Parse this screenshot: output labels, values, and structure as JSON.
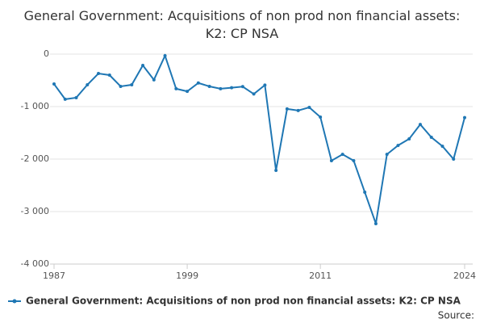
{
  "chart_data": {
    "type": "line",
    "title": "General Government: Acquisitions of non prod non financial assets: K2: CP NSA",
    "source": "Source:",
    "x": [
      1987,
      1988,
      1989,
      1990,
      1991,
      1992,
      1993,
      1994,
      1995,
      1996,
      1997,
      1998,
      1999,
      2000,
      2001,
      2002,
      2003,
      2004,
      2005,
      2006,
      2007,
      2008,
      2009,
      2010,
      2011,
      2012,
      2013,
      2014,
      2015,
      2016,
      2017,
      2018,
      2019,
      2020,
      2021,
      2022,
      2023,
      2024
    ],
    "series": [
      {
        "name": "General Government: Acquisitions of non prod non financial assets: K2: CP NSA",
        "color": "#1f77b4",
        "values": [
          -570,
          -860,
          -830,
          -585,
          -370,
          -400,
          -615,
          -585,
          -215,
          -490,
          -30,
          -660,
          -710,
          -550,
          -615,
          -660,
          -640,
          -620,
          -760,
          -590,
          -2215,
          -1045,
          -1075,
          -1015,
          -1200,
          -2030,
          -1910,
          -2030,
          -2630,
          -3230,
          -1910,
          -1740,
          -1615,
          -1340,
          -1585,
          -1755,
          -2000,
          -1210
        ]
      }
    ],
    "xlim": [
      1987,
      2024
    ],
    "xticks": [
      1987,
      1999,
      2011,
      2024
    ],
    "ylim": [
      -4000,
      0
    ],
    "yticks": [
      {
        "value": -4000,
        "label": "-4 000"
      },
      {
        "value": -3000,
        "label": "-3 000"
      },
      {
        "value": -2000,
        "label": "-2 000"
      },
      {
        "value": -1000,
        "label": "-1 000"
      },
      0
    ],
    "grid": true
  }
}
